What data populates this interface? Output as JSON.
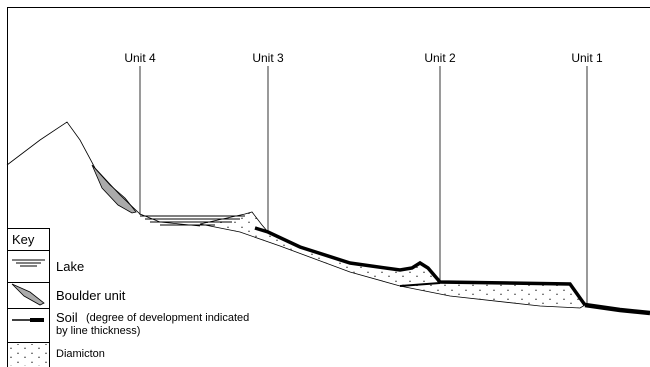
{
  "units": [
    {
      "label": "Unit 4"
    },
    {
      "label": "Unit 3"
    },
    {
      "label": "Unit 2"
    },
    {
      "label": "Unit 1"
    }
  ],
  "key": {
    "title": "Key",
    "items": [
      {
        "label": "Lake"
      },
      {
        "label": "Boulder unit"
      },
      {
        "label": "Soil",
        "note_lines": [
          "(degree of development indicated",
          "by line thickness)"
        ]
      },
      {
        "label": "Diamicton"
      }
    ]
  }
}
